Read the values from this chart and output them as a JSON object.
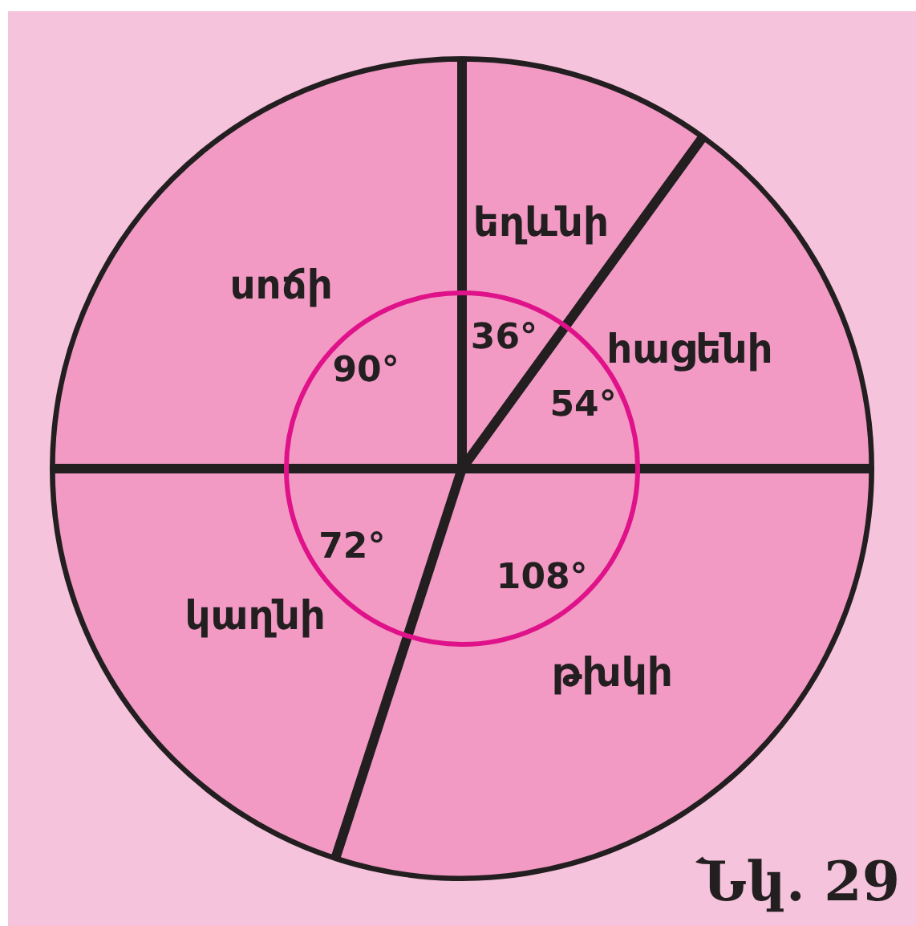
{
  "chart_data": {
    "type": "pie",
    "categories": [
      "եղևնի",
      "հացենի",
      "թխկի",
      "կաղնի",
      "սոճի"
    ],
    "values": [
      36,
      54,
      108,
      72,
      90
    ],
    "value_labels": [
      "36°",
      "54°",
      "108°",
      "72°",
      "90°"
    ],
    "colors": [
      "#f29ac4",
      "#f29ac4",
      "#f29ac4",
      "#f29ac4",
      "#f29ac4"
    ],
    "legend": false,
    "annotations": [
      "Նկ. 29"
    ]
  }
}
